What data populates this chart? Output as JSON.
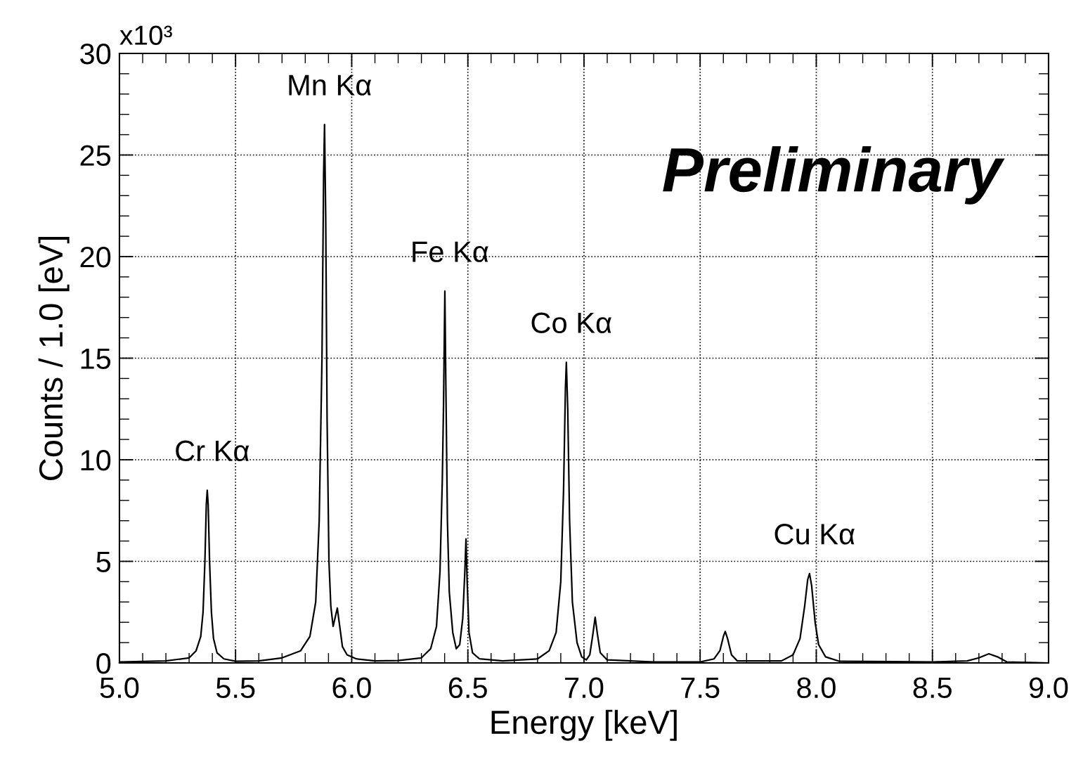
{
  "chart_data": {
    "type": "line",
    "xlabel": "Energy [keV]",
    "ylabel": "Counts / 1.0 [eV]",
    "x": [
      5.0,
      5.2,
      5.3,
      5.33,
      5.35,
      5.36,
      5.368,
      5.374,
      5.378,
      5.382,
      5.388,
      5.396,
      5.405,
      5.42,
      5.45,
      5.5,
      5.6,
      5.7,
      5.78,
      5.82,
      5.845,
      5.86,
      5.872,
      5.879,
      5.883,
      5.888,
      5.894,
      5.902,
      5.91,
      5.92,
      5.93,
      5.938,
      5.946,
      5.96,
      5.98,
      6.02,
      6.1,
      6.2,
      6.3,
      6.34,
      6.365,
      6.38,
      6.39,
      6.395,
      6.401,
      6.405,
      6.412,
      6.42,
      6.435,
      6.45,
      6.465,
      6.478,
      6.487,
      6.492,
      6.497,
      6.505,
      6.52,
      6.55,
      6.65,
      6.8,
      6.85,
      6.88,
      6.9,
      6.912,
      6.92,
      6.924,
      6.93,
      6.938,
      6.95,
      6.97,
      6.99,
      7.01,
      7.025,
      7.038,
      7.048,
      7.058,
      7.07,
      7.1,
      7.3,
      7.5,
      7.56,
      7.585,
      7.6,
      7.608,
      7.618,
      7.635,
      7.66,
      7.85,
      7.9,
      7.93,
      7.95,
      7.963,
      7.971,
      7.98,
      7.995,
      8.01,
      8.04,
      8.1,
      8.5,
      8.65,
      8.7,
      8.743,
      8.78,
      8.82,
      9.0
    ],
    "series": [
      {
        "color": "#000000",
        "values": [
          0.05,
          0.1,
          0.25,
          0.6,
          1.3,
          2.5,
          5.0,
          7.8,
          8.5,
          7.8,
          5.0,
          2.5,
          1.2,
          0.5,
          0.2,
          0.08,
          0.1,
          0.25,
          0.6,
          1.3,
          3.0,
          7.0,
          15,
          24,
          26.5,
          22,
          12,
          5,
          2.8,
          1.8,
          2.3,
          2.7,
          2.0,
          0.8,
          0.4,
          0.2,
          0.1,
          0.12,
          0.25,
          0.7,
          1.8,
          4.5,
          9.0,
          12.5,
          18.3,
          14.0,
          7.0,
          3.5,
          1.5,
          0.7,
          0.9,
          2.2,
          4.5,
          6.1,
          4.0,
          1.5,
          0.5,
          0.2,
          0.1,
          0.2,
          0.6,
          1.5,
          4.0,
          8.5,
          13.5,
          14.8,
          12.5,
          7.0,
          3.0,
          1.0,
          0.3,
          0.15,
          0.4,
          1.4,
          2.25,
          1.4,
          0.5,
          0.15,
          0.05,
          0.05,
          0.2,
          0.6,
          1.3,
          1.55,
          1.2,
          0.4,
          0.1,
          0.1,
          0.4,
          1.2,
          2.8,
          4.1,
          4.4,
          3.8,
          2.0,
          0.9,
          0.3,
          0.08,
          0.05,
          0.1,
          0.25,
          0.45,
          0.3,
          0.05,
          0.0
        ]
      }
    ],
    "xlim": [
      5.0,
      9.0
    ],
    "xticks": [
      {
        "value": 5.0,
        "label": "5.0"
      },
      5.5,
      {
        "value": 6.0,
        "label": "6.0"
      },
      6.5,
      {
        "value": 7.0,
        "label": "7.0"
      },
      7.5,
      {
        "value": 8.0,
        "label": "8.0"
      },
      8.5,
      {
        "value": 9.0,
        "label": "9.0"
      }
    ],
    "ylim": [
      0,
      30
    ],
    "yticks": [
      0,
      5,
      10,
      15,
      20,
      25,
      30
    ],
    "grid": true,
    "line_style": "solid",
    "marker": "none",
    "annotations": [
      "x10³",
      "Preliminary",
      {
        "text": "Cr Kα",
        "x": 5.378,
        "y": 8.5
      },
      {
        "text": "Mn Kα",
        "x": 5.883,
        "y": 26.5
      },
      {
        "text": "Fe Kα",
        "x": 6.401,
        "y": 18.3
      },
      {
        "text": "Co Kα",
        "x": 6.924,
        "y": 14.8
      },
      {
        "text": "Cu Kα",
        "x": 7.971,
        "y": 4.4
      }
    ]
  }
}
